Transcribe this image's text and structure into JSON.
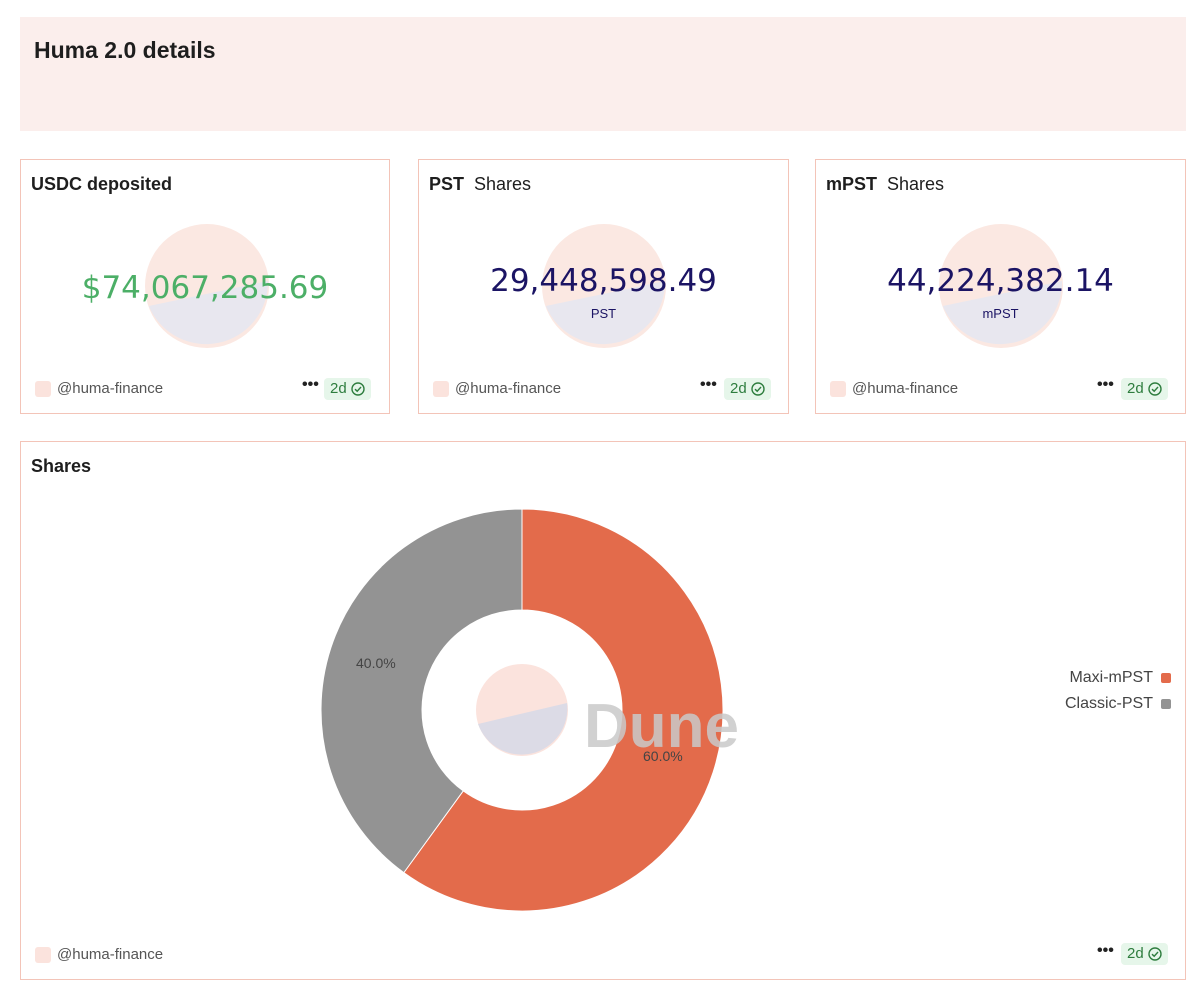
{
  "header": {
    "title": "Huma 2.0 details"
  },
  "cards": [
    {
      "title": "USDC deposited",
      "subtitle": "",
      "value": "$74,067,285.69",
      "label": "",
      "value_color": "#4caf67",
      "author": "@huma-finance",
      "age": "2d"
    },
    {
      "title": "PST",
      "subtitle": "Shares",
      "value": "29,448,598.49",
      "label": "PST",
      "value_color": "#1b1464",
      "author": "@huma-finance",
      "age": "2d"
    },
    {
      "title": "mPST",
      "subtitle": "Shares",
      "value": "44,224,382.14",
      "label": "mPST",
      "value_color": "#1b1464",
      "author": "@huma-finance",
      "age": "2d"
    }
  ],
  "shares_panel": {
    "title": "Shares",
    "watermark_text": "Dune",
    "author": "@huma-finance",
    "age": "2d",
    "labels": [
      "60.0%",
      "40.0%"
    ]
  },
  "chart_data": {
    "type": "pie",
    "title": "Shares",
    "donut": true,
    "categories": [
      "Maxi-mPST",
      "Classic-PST"
    ],
    "values": [
      60.0,
      40.0
    ],
    "colors": [
      "#e36b4b",
      "#939393"
    ],
    "legend_position": "right"
  },
  "icons": {
    "more": "more-dots-icon",
    "verified": "check-circle-icon",
    "avatar": "avatar-icon"
  }
}
